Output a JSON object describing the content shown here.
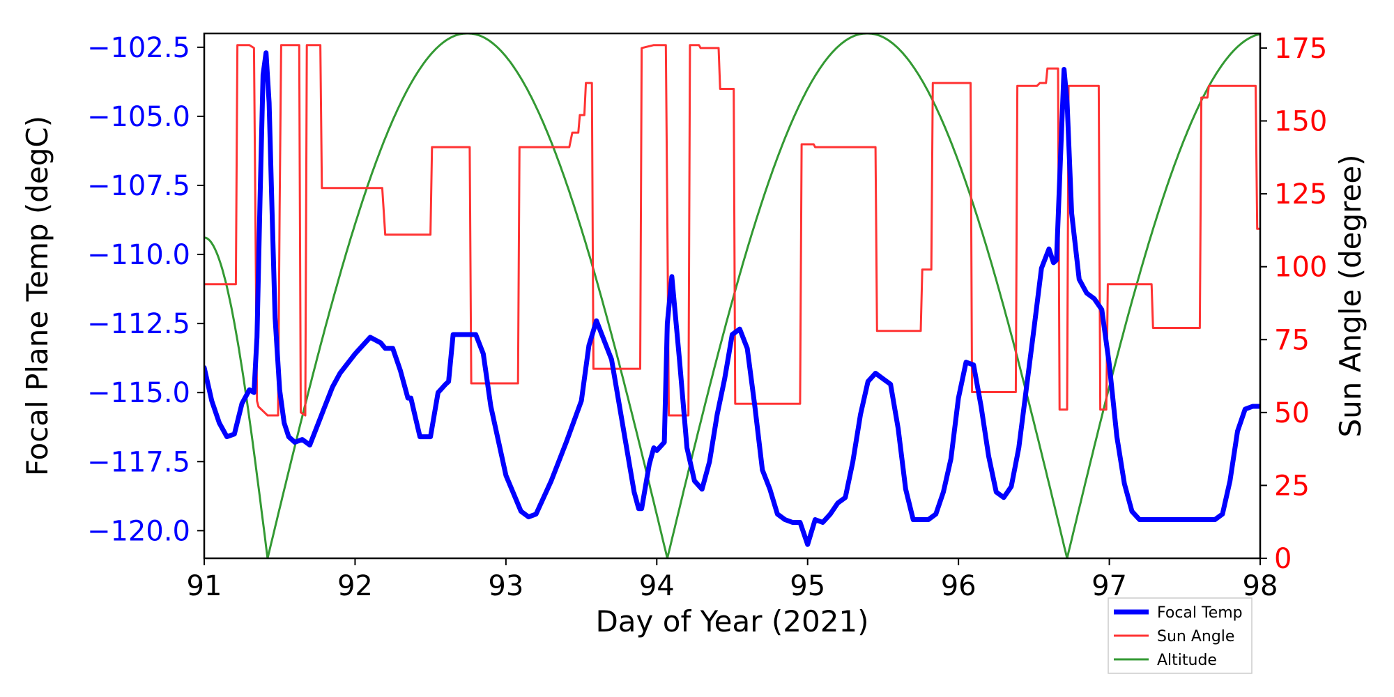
{
  "chart_data": {
    "type": "line",
    "xlabel": "Day of Year (2021)",
    "ylabel_left": "Focal Plane Temp (degC)",
    "ylabel_right": "Sun Angle (degree)",
    "xlim": [
      91,
      98
    ],
    "ylim_left": [
      -121.0,
      -102.0
    ],
    "ylim_right": [
      0,
      180
    ],
    "x_ticks": [
      91,
      92,
      93,
      94,
      95,
      96,
      97,
      98
    ],
    "x_tick_labels": [
      "91",
      "92",
      "93",
      "94",
      "95",
      "96",
      "97",
      "98"
    ],
    "y_left_ticks": [
      -102.5,
      -105.0,
      -107.5,
      -110.0,
      -112.5,
      -115.0,
      -117.5,
      -120.0
    ],
    "y_left_tick_labels": [
      "−102.5",
      "−105.0",
      "−107.5",
      "−110.0",
      "−112.5",
      "−115.0",
      "−117.5",
      "−120.0"
    ],
    "y_right_ticks": [
      0,
      25,
      50,
      75,
      100,
      125,
      150,
      175
    ],
    "y_right_tick_labels": [
      "0",
      "25",
      "50",
      "75",
      "100",
      "125",
      "150",
      "175"
    ],
    "legend": {
      "position": "below-right",
      "entries": [
        "Focal Temp",
        "Sun Angle",
        "Altitude"
      ]
    },
    "colors": {
      "focal_temp": "#0000ff",
      "sun_angle": "#ff3333",
      "altitude": "#339933",
      "left_axis": "#0000ff",
      "right_axis": "#ff0000"
    },
    "series": [
      {
        "name": "Focal Temp",
        "axis": "left",
        "color": "#0000ff",
        "x": [
          91.0,
          91.05,
          91.1,
          91.15,
          91.2,
          91.25,
          91.3,
          91.33,
          91.35,
          91.37,
          91.39,
          91.41,
          91.43,
          91.45,
          91.47,
          91.5,
          91.53,
          91.56,
          91.6,
          91.65,
          91.7,
          91.75,
          91.8,
          91.85,
          91.9,
          92.0,
          92.1,
          92.17,
          92.2,
          92.25,
          92.3,
          92.35,
          92.37,
          92.4,
          92.43,
          92.45,
          92.47,
          92.5,
          92.55,
          92.6,
          92.62,
          92.65,
          92.7,
          92.72,
          92.8,
          92.85,
          92.9,
          93.0,
          93.1,
          93.15,
          93.2,
          93.3,
          93.4,
          93.5,
          93.55,
          93.6,
          93.7,
          93.8,
          93.85,
          93.88,
          93.9,
          93.95,
          93.98,
          94.0,
          94.05,
          94.07,
          94.1,
          94.15,
          94.2,
          94.25,
          94.3,
          94.35,
          94.4,
          94.45,
          94.5,
          94.55,
          94.6,
          94.65,
          94.7,
          94.75,
          94.8,
          94.85,
          94.9,
          94.95,
          95.0,
          95.05,
          95.1,
          95.15,
          95.2,
          95.25,
          95.3,
          95.35,
          95.4,
          95.45,
          95.5,
          95.55,
          95.6,
          95.65,
          95.7,
          95.75,
          95.8,
          95.85,
          95.9,
          95.95,
          96.0,
          96.05,
          96.1,
          96.15,
          96.2,
          96.25,
          96.3,
          96.35,
          96.4,
          96.5,
          96.55,
          96.6,
          96.63,
          96.65,
          96.68,
          96.7,
          96.72,
          96.75,
          96.8,
          96.85,
          96.9,
          96.95,
          97.0,
          97.05,
          97.1,
          97.15,
          97.2,
          97.25,
          97.3,
          97.4,
          97.5,
          97.6,
          97.7,
          97.75,
          97.8,
          97.85,
          97.9,
          97.95,
          98.0
        ],
        "values": [
          -114.1,
          -115.3,
          -116.1,
          -116.6,
          -116.5,
          -115.4,
          -114.9,
          -115.0,
          -113.0,
          -108.0,
          -103.5,
          -102.7,
          -104.5,
          -108.5,
          -112.3,
          -114.9,
          -116.1,
          -116.6,
          -116.8,
          -116.7,
          -116.9,
          -116.2,
          -115.5,
          -114.8,
          -114.3,
          -113.6,
          -113.0,
          -113.2,
          -113.4,
          -113.4,
          -114.2,
          -115.2,
          -115.2,
          -115.9,
          -116.6,
          -116.6,
          -116.6,
          -116.6,
          -115.0,
          -114.7,
          -114.6,
          -112.9,
          -112.9,
          -112.9,
          -112.9,
          -113.6,
          -115.5,
          -118.0,
          -119.3,
          -119.5,
          -119.4,
          -118.2,
          -116.8,
          -115.3,
          -113.3,
          -112.4,
          -113.8,
          -117.0,
          -118.6,
          -119.2,
          -119.2,
          -117.6,
          -117.0,
          -117.1,
          -116.8,
          -112.5,
          -110.8,
          -113.8,
          -117.0,
          -118.2,
          -118.5,
          -117.5,
          -115.8,
          -114.5,
          -112.9,
          -112.7,
          -113.4,
          -115.5,
          -117.8,
          -118.5,
          -119.4,
          -119.6,
          -119.7,
          -119.7,
          -120.5,
          -119.6,
          -119.7,
          -119.4,
          -119.0,
          -118.8,
          -117.5,
          -115.8,
          -114.6,
          -114.3,
          -114.5,
          -114.7,
          -116.3,
          -118.5,
          -119.6,
          -119.6,
          -119.6,
          -119.4,
          -118.6,
          -117.4,
          -115.2,
          -113.9,
          -114.0,
          -115.5,
          -117.3,
          -118.6,
          -118.8,
          -118.4,
          -117.0,
          -112.7,
          -110.5,
          -109.8,
          -110.3,
          -110.2,
          -106.0,
          -103.3,
          -104.5,
          -108.5,
          -110.9,
          -111.4,
          -111.6,
          -112.0,
          -114.0,
          -116.6,
          -118.3,
          -119.3,
          -119.6,
          -119.6,
          -119.6,
          -119.6,
          -119.6,
          -119.6,
          -119.6,
          -119.4,
          -118.2,
          -116.4,
          -115.6,
          -115.5,
          -115.5
        ]
      },
      {
        "name": "Sun Angle",
        "axis": "right",
        "color": "#ff3333",
        "x": [
          91.0,
          91.21,
          91.22,
          91.3,
          91.33,
          91.35,
          91.36,
          91.42,
          91.49,
          91.5,
          91.51,
          91.63,
          91.64,
          91.67,
          91.68,
          91.69,
          91.7,
          91.77,
          91.78,
          92.18,
          92.2,
          92.5,
          92.51,
          92.76,
          92.77,
          93.08,
          93.09,
          93.42,
          93.44,
          93.48,
          93.49,
          93.52,
          93.53,
          93.57,
          93.58,
          93.89,
          93.9,
          93.98,
          94.06,
          94.07,
          94.08,
          94.21,
          94.22,
          94.28,
          94.29,
          94.41,
          94.42,
          94.51,
          94.52,
          94.55,
          94.56,
          94.95,
          94.96,
          95.04,
          95.05,
          95.45,
          95.46,
          95.75,
          95.76,
          95.82,
          95.83,
          96.08,
          96.09,
          96.38,
          96.39,
          96.52,
          96.54,
          96.58,
          96.59,
          96.66,
          96.67,
          96.72,
          96.73,
          96.93,
          96.94,
          96.98,
          96.99,
          97.28,
          97.29,
          97.6,
          97.61,
          97.65,
          97.66,
          97.97,
          97.98,
          98.0
        ],
        "values": [
          94,
          94,
          176,
          176,
          175,
          54,
          52,
          49,
          49,
          120,
          176,
          176,
          50,
          49,
          176,
          176,
          176,
          176,
          127,
          127,
          111,
          111,
          141,
          141,
          60,
          60,
          141,
          141,
          146,
          146,
          152,
          152,
          163,
          163,
          65,
          65,
          175,
          176,
          176,
          118,
          49,
          49,
          176,
          176,
          175,
          175,
          161,
          161,
          53,
          53,
          53,
          53,
          142,
          142,
          141,
          141,
          78,
          78,
          99,
          99,
          163,
          163,
          57,
          57,
          162,
          162,
          163,
          163,
          168,
          168,
          51,
          51,
          162,
          162,
          51,
          51,
          94,
          94,
          79,
          79,
          158,
          158,
          162,
          162,
          113,
          113
        ]
      },
      {
        "name": "Altitude",
        "axis": "right",
        "color": "#339933",
        "model": "abs-cosine arcs between minima",
        "x_min": [
          91.42,
          94.07,
          96.72
        ],
        "x_max": [
          92.74,
          95.4,
          98.02
        ],
        "altitude_range": [
          0,
          180
        ],
        "start_value": 110
      }
    ]
  }
}
